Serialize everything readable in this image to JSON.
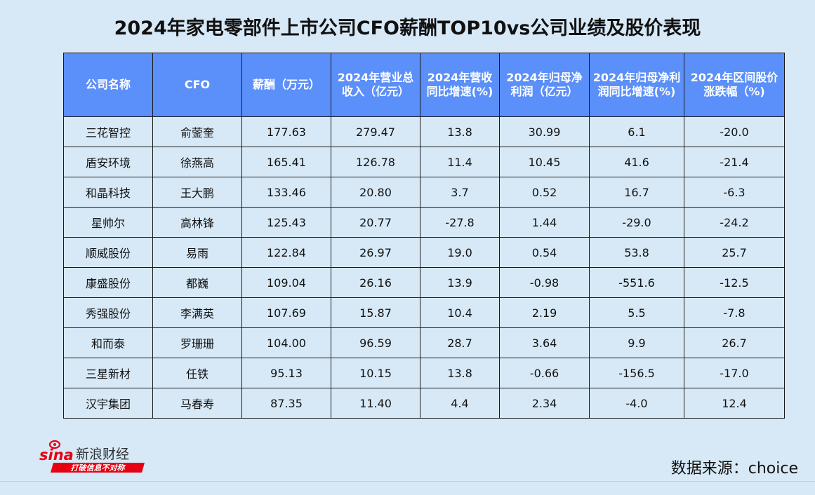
{
  "title": "2024年家电零部件上市公司CFO薪酬TOP10vs公司业绩及股价表现",
  "table": {
    "headers": [
      "公司名称",
      "CFO",
      "薪酬（万元）",
      "2024年营业总收入（亿元）",
      "2024年营收同比增速(%)",
      "2024年归母净利润（亿元）",
      "2024年归母净利润同比增速(%)",
      "2024年区间股价涨跌幅（%)"
    ],
    "rows": [
      [
        "三花智控",
        "俞蓥奎",
        "177.63",
        "279.47",
        "13.8",
        "30.99",
        "6.1",
        "-20.0"
      ],
      [
        "盾安环境",
        "徐燕高",
        "165.41",
        "126.78",
        "11.4",
        "10.45",
        "41.6",
        "-21.4"
      ],
      [
        "和晶科技",
        "王大鹏",
        "133.46",
        "20.80",
        "3.7",
        "0.52",
        "16.7",
        "-6.3"
      ],
      [
        "星帅尔",
        "高林锋",
        "125.43",
        "20.77",
        "-27.8",
        "1.44",
        "-29.0",
        "-24.2"
      ],
      [
        "顺威股份",
        "易雨",
        "122.84",
        "26.97",
        "19.0",
        "0.54",
        "53.8",
        "25.7"
      ],
      [
        "康盛股份",
        "都巍",
        "109.04",
        "26.16",
        "13.9",
        "-0.98",
        "-551.6",
        "-12.5"
      ],
      [
        "秀强股份",
        "李满英",
        "107.69",
        "15.87",
        "10.4",
        "2.19",
        "5.5",
        "-7.8"
      ],
      [
        "和而泰",
        "罗珊珊",
        "104.00",
        "96.59",
        "28.7",
        "3.64",
        "9.9",
        "26.7"
      ],
      [
        "三星新材",
        "任铁",
        "95.13",
        "10.15",
        "13.8",
        "-0.66",
        "-156.5",
        "-17.0"
      ],
      [
        "汉宇集团",
        "马春寿",
        "87.35",
        "11.40",
        "4.4",
        "2.34",
        "-4.0",
        "12.4"
      ]
    ]
  },
  "logo": {
    "brand": "sina",
    "name": "新浪财经",
    "slogan": "打破信息不对称"
  },
  "source": "数据来源：choice",
  "colors": {
    "background": "#d7e9f7",
    "header": "#5b8ff9",
    "sina_red": "#e60012"
  }
}
